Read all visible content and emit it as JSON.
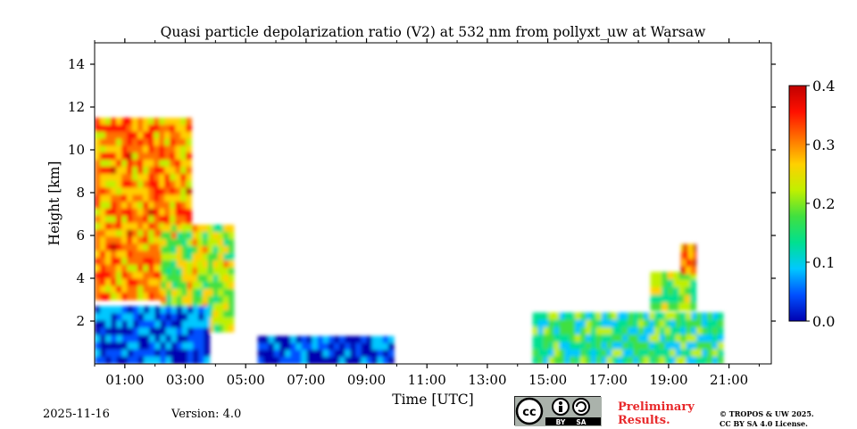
{
  "chart_data": {
    "type": "heatmap",
    "title": "Quasi particle depolarization ratio (V2) at 532 nm from pollyxt_uw at Warsaw",
    "xlabel": "Time [UTC]",
    "ylabel": "Height [km]",
    "x_ticks": [
      "01:00",
      "03:00",
      "05:00",
      "07:00",
      "09:00",
      "11:00",
      "13:00",
      "15:00",
      "17:00",
      "19:00",
      "21:00"
    ],
    "x_tick_hours": [
      1,
      3,
      5,
      7,
      9,
      11,
      13,
      15,
      17,
      19,
      21
    ],
    "xlim_hours": [
      0.0,
      22.4
    ],
    "y_ticks": [
      "2",
      "4",
      "6",
      "8",
      "10",
      "12",
      "14"
    ],
    "y_tick_values": [
      2,
      4,
      6,
      8,
      10,
      12,
      14
    ],
    "ylim_km": [
      0,
      15
    ],
    "colorbar": {
      "ticks": [
        "0.0",
        "0.1",
        "0.2",
        "0.3",
        "0.4"
      ],
      "tick_values": [
        0.0,
        0.1,
        0.2,
        0.3,
        0.4
      ],
      "range": [
        0.0,
        0.4
      ],
      "colormap": [
        "#0000b0",
        "#0050ff",
        "#00c8ff",
        "#00e090",
        "#40e040",
        "#c0f000",
        "#ffd000",
        "#ff7000",
        "#ff1000",
        "#c00000"
      ]
    },
    "regions": [
      {
        "name": "morning-cirrus-plume",
        "t0": 0.0,
        "t1": 3.2,
        "h0": 3.0,
        "h1": 11.5,
        "value": 0.3
      },
      {
        "name": "morning-cirrus-tail",
        "t0": 2.2,
        "t1": 4.6,
        "h0": 1.5,
        "h1": 6.5,
        "value": 0.22
      },
      {
        "name": "morning-boundary-layer",
        "t0": 0.0,
        "t1": 3.8,
        "h0": 0.0,
        "h1": 2.7,
        "value": 0.03
      },
      {
        "name": "midday-boundary-layer",
        "t0": 5.4,
        "t1": 9.9,
        "h0": 0.0,
        "h1": 1.3,
        "value": 0.02
      },
      {
        "name": "afternoon-aerosol-layer",
        "t0": 14.5,
        "t1": 20.8,
        "h0": 0.0,
        "h1": 2.4,
        "value": 0.15
      },
      {
        "name": "evening-elevated-layer",
        "t0": 18.4,
        "t1": 19.9,
        "h0": 2.5,
        "h1": 4.3,
        "value": 0.2
      },
      {
        "name": "evening-cloud-peak",
        "t0": 19.4,
        "t1": 19.9,
        "h0": 4.2,
        "h1": 5.6,
        "value": 0.33
      }
    ]
  },
  "footer": {
    "date": "2025-11-16",
    "version": "Version: 4.0",
    "preliminary_line1": "Preliminary",
    "preliminary_line2": "Results.",
    "copyright_line1": "© TROPOS & UW 2025.",
    "copyright_line2": "CC BY SA 4.0 License.",
    "license_badge": "CC BY SA",
    "badge_by": "BY",
    "badge_sa": "SA"
  }
}
